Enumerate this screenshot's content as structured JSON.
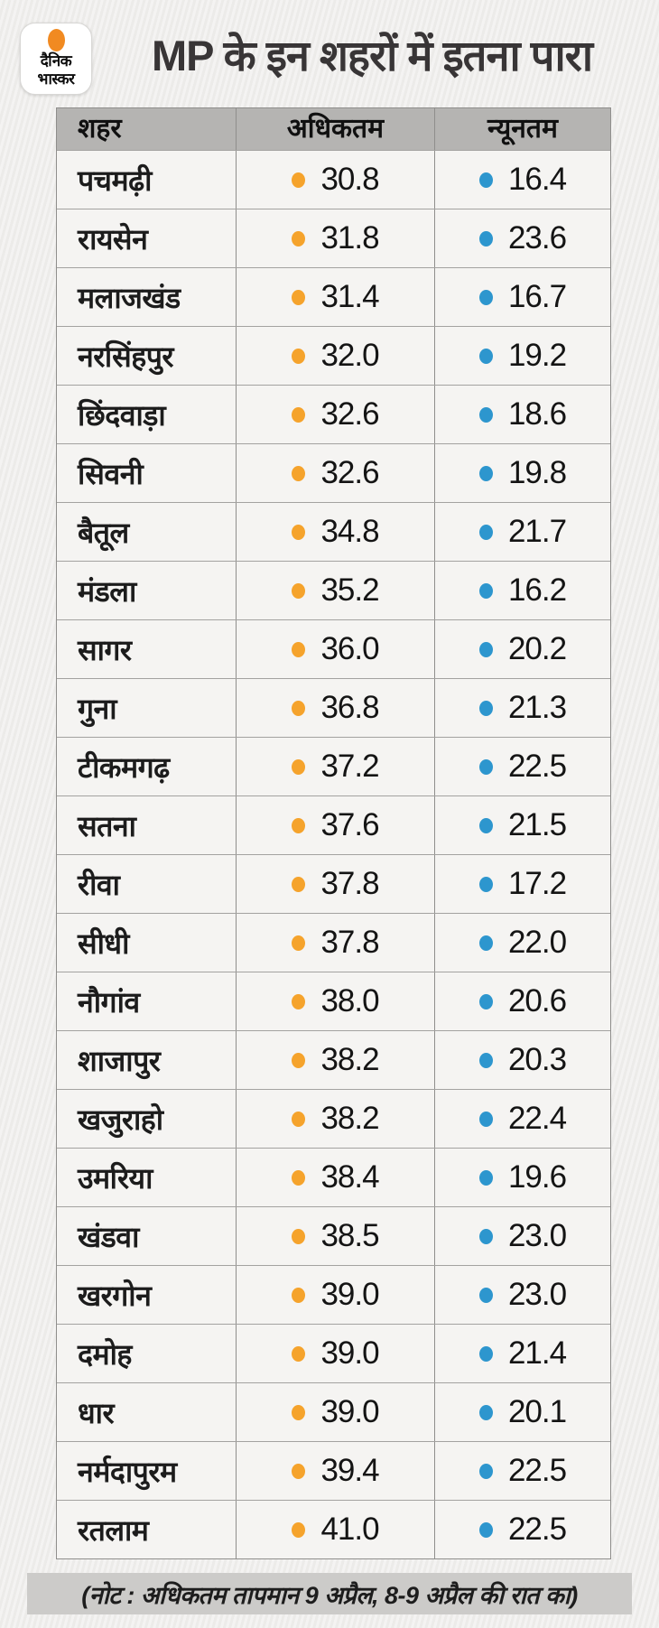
{
  "title": "MP के इन शहरों में इतना पारा",
  "logo": {
    "line1": "दैनिक",
    "line2": "भास्कर"
  },
  "colors": {
    "page_bg": "#f0efed",
    "row_bg": "#f5f4f2",
    "header_bg": "#b5b4b2",
    "note_bg": "#cccbc9",
    "grid_border": "#8f8e8c",
    "row_border": "#a3a2a0",
    "max_dot": "#f5a32c",
    "min_dot": "#2d96ce",
    "title_color": "#383536",
    "logo_sun": "#f18a21"
  },
  "table": {
    "headers": [
      "शहर",
      "अधिकतम",
      "न्यूनतम"
    ],
    "rows": [
      [
        "पचमढ़ी",
        "30.8",
        "16.4"
      ],
      [
        "रायसेन",
        "31.8",
        "23.6"
      ],
      [
        "मलाजखंड",
        "31.4",
        "16.7"
      ],
      [
        "नरसिंहपुर",
        "32.0",
        "19.2"
      ],
      [
        "छिंदवाड़ा",
        "32.6",
        "18.6"
      ],
      [
        "सिवनी",
        "32.6",
        "19.8"
      ],
      [
        "बैतूल",
        "34.8",
        "21.7"
      ],
      [
        "मंडला",
        "35.2",
        "16.2"
      ],
      [
        "सागर",
        "36.0",
        "20.2"
      ],
      [
        "गुना",
        "36.8",
        "21.3"
      ],
      [
        "टीकमगढ़",
        "37.2",
        "22.5"
      ],
      [
        "सतना",
        "37.6",
        "21.5"
      ],
      [
        "रीवा",
        "37.8",
        "17.2"
      ],
      [
        "सीधी",
        "37.8",
        "22.0"
      ],
      [
        "नौगांव",
        "38.0",
        "20.6"
      ],
      [
        "शाजापुर",
        "38.2",
        "20.3"
      ],
      [
        "खजुराहो",
        "38.2",
        "22.4"
      ],
      [
        "उमरिया",
        "38.4",
        "19.6"
      ],
      [
        "खंडवा",
        "38.5",
        "23.0"
      ],
      [
        "खरगोन",
        "39.0",
        "23.0"
      ],
      [
        "दमोह",
        "39.0",
        "21.4"
      ],
      [
        "धार",
        "39.0",
        "20.1"
      ],
      [
        "नर्मदापुरम",
        "39.4",
        "22.5"
      ],
      [
        "रतलाम",
        "41.0",
        "22.5"
      ]
    ]
  },
  "note": "(नोट : अधिकतम तापमान 9 अप्रैल, 8-9 अप्रैल की रात का)",
  "chart_data": {
    "type": "table",
    "title": "MP के इन शहरों में इतना पारा",
    "columns": [
      "शहर",
      "अधिकतम",
      "न्यूनतम"
    ],
    "categories": [
      "पचमढ़ी",
      "रायसेन",
      "मलाजखंड",
      "नरसिंहपुर",
      "छिंदवाड़ा",
      "सिवनी",
      "बैतूल",
      "मंडला",
      "सागर",
      "गुना",
      "टीकमगढ़",
      "सतना",
      "रीवा",
      "सीधी",
      "नौगांव",
      "शाजापुर",
      "खजुराहो",
      "उमरिया",
      "खंडवा",
      "खरगोन",
      "दमोह",
      "धार",
      "नर्मदापुरम",
      "रतलाम"
    ],
    "series": [
      {
        "name": "अधिकतम",
        "values": [
          30.8,
          31.8,
          31.4,
          32.0,
          32.6,
          32.6,
          34.8,
          35.2,
          36.0,
          36.8,
          37.2,
          37.6,
          37.8,
          37.8,
          38.0,
          38.2,
          38.2,
          38.4,
          38.5,
          39.0,
          39.0,
          39.0,
          39.4,
          41.0
        ]
      },
      {
        "name": "न्यूनतम",
        "values": [
          16.4,
          23.6,
          16.7,
          19.2,
          18.6,
          19.8,
          21.7,
          16.2,
          20.2,
          21.3,
          22.5,
          21.5,
          17.2,
          22.0,
          20.6,
          20.3,
          22.4,
          19.6,
          23.0,
          23.0,
          21.4,
          20.1,
          22.5,
          22.5
        ]
      }
    ],
    "note": "(नोट : अधिकतम तापमान 9 अप्रैल, 8-9 अप्रैल की रात का)"
  }
}
